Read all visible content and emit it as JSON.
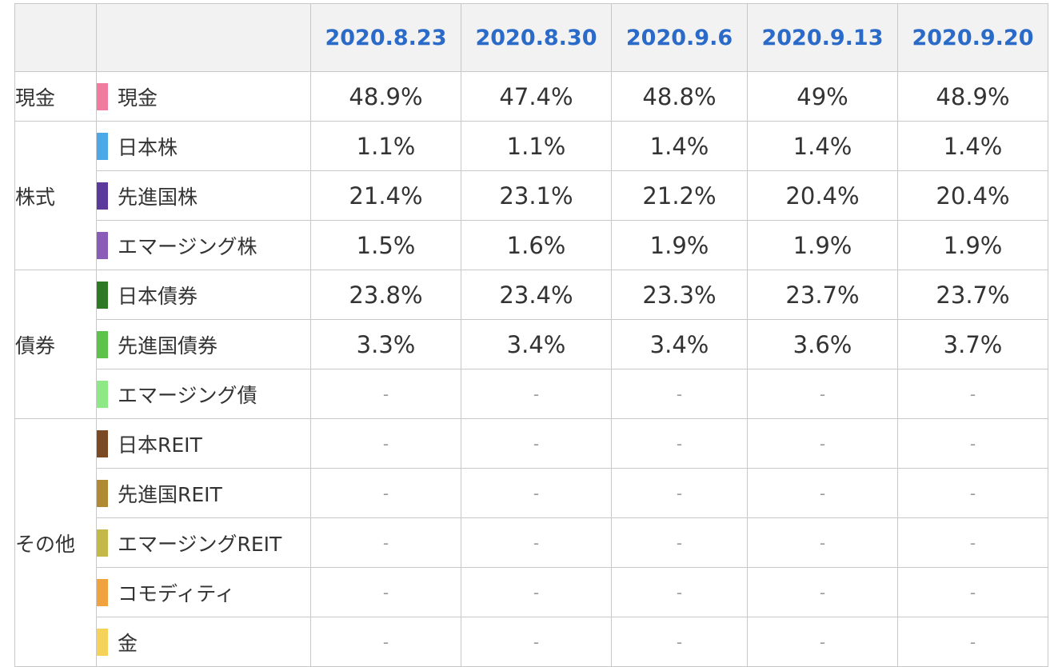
{
  "dates": [
    "2020.8.23",
    "2020.8.30",
    "2020.9.6",
    "2020.9.13",
    "2020.9.20"
  ],
  "groups": [
    {
      "category": "現金",
      "rows": [
        {
          "asset": "現金",
          "color": "#f07aa0",
          "values": [
            "48.9%",
            "47.4%",
            "48.8%",
            "49%",
            "48.9%"
          ]
        }
      ]
    },
    {
      "category": "株式",
      "rows": [
        {
          "asset": "日本株",
          "color": "#4aa9e6",
          "values": [
            "1.1%",
            "1.1%",
            "1.4%",
            "1.4%",
            "1.4%"
          ]
        },
        {
          "asset": "先進国株",
          "color": "#5b3a9c",
          "values": [
            "21.4%",
            "23.1%",
            "21.2%",
            "20.4%",
            "20.4%"
          ]
        },
        {
          "asset": "エマージング株",
          "color": "#8a5cb8",
          "values": [
            "1.5%",
            "1.6%",
            "1.9%",
            "1.9%",
            "1.9%"
          ]
        }
      ]
    },
    {
      "category": "債券",
      "rows": [
        {
          "asset": "日本債券",
          "color": "#2e7a24",
          "values": [
            "23.8%",
            "23.4%",
            "23.3%",
            "23.7%",
            "23.7%"
          ]
        },
        {
          "asset": "先進国債券",
          "color": "#5cc24a",
          "values": [
            "3.3%",
            "3.4%",
            "3.4%",
            "3.6%",
            "3.7%"
          ]
        },
        {
          "asset": "エマージング債",
          "color": "#8ee886",
          "values": [
            "-",
            "-",
            "-",
            "-",
            "-"
          ]
        }
      ]
    },
    {
      "category": "その他",
      "rows": [
        {
          "asset": "日本REIT",
          "color": "#7a4a24",
          "values": [
            "-",
            "-",
            "-",
            "-",
            "-"
          ]
        },
        {
          "asset": "先進国REIT",
          "color": "#b08a32",
          "values": [
            "-",
            "-",
            "-",
            "-",
            "-"
          ]
        },
        {
          "asset": "エマージングREIT",
          "color": "#c4b848",
          "values": [
            "-",
            "-",
            "-",
            "-",
            "-"
          ]
        },
        {
          "asset": "コモディティ",
          "color": "#f0a23e",
          "values": [
            "-",
            "-",
            "-",
            "-",
            "-"
          ]
        },
        {
          "asset": "金",
          "color": "#f5d35a",
          "values": [
            "-",
            "-",
            "-",
            "-",
            "-"
          ]
        }
      ]
    }
  ]
}
